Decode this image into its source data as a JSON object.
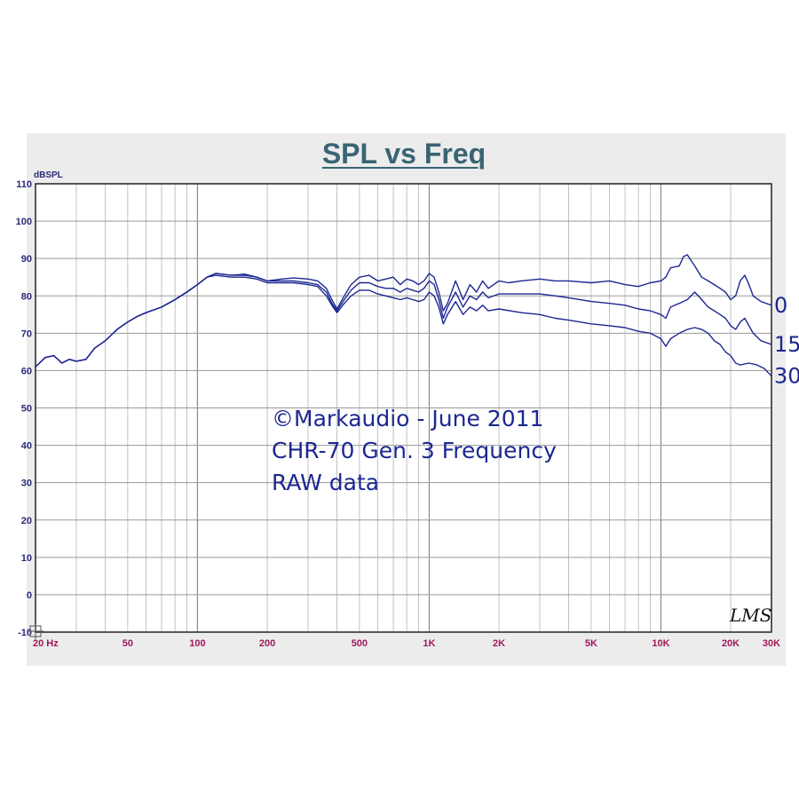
{
  "chart_data": {
    "type": "line",
    "title": "SPL vs Freq",
    "ylabel": "dBSPL",
    "xscale": "log",
    "xlim": [
      20,
      30000
    ],
    "ylim": [
      -10,
      110
    ],
    "grid": true,
    "y_ticks": [
      "110",
      "100",
      "90",
      "80",
      "70",
      "60",
      "50",
      "40",
      "30",
      "20",
      "10",
      "0",
      "-10"
    ],
    "x_ticks": [
      {
        "label": "20 Hz",
        "value": 20
      },
      {
        "label": "50",
        "value": 50
      },
      {
        "label": "100",
        "value": 100
      },
      {
        "label": "200",
        "value": 200
      },
      {
        "label": "500",
        "value": 500
      },
      {
        "label": "1K",
        "value": 1000
      },
      {
        "label": "2K",
        "value": 2000
      },
      {
        "label": "5K",
        "value": 5000
      },
      {
        "label": "10K",
        "value": 10000
      },
      {
        "label": "20K",
        "value": 20000
      },
      {
        "label": "30K",
        "value": 30000
      }
    ],
    "annotations": [
      "©Markaudio - June 2011",
      "CHR-70 Gen. 3 Frequency",
      "RAW data"
    ],
    "signature": "LMS",
    "series": [
      {
        "name": "0",
        "color": "#1c2791",
        "points": [
          [
            20,
            61
          ],
          [
            22,
            63.5
          ],
          [
            24,
            64
          ],
          [
            26,
            62
          ],
          [
            28,
            63
          ],
          [
            30,
            62.5
          ],
          [
            33,
            63
          ],
          [
            36,
            66
          ],
          [
            40,
            68
          ],
          [
            45,
            71
          ],
          [
            50,
            73
          ],
          [
            55,
            74.5
          ],
          [
            60,
            75.5
          ],
          [
            70,
            77
          ],
          [
            80,
            79
          ],
          [
            90,
            81
          ],
          [
            100,
            83
          ],
          [
            110,
            85
          ],
          [
            120,
            86
          ],
          [
            140,
            85.5
          ],
          [
            160,
            85.8
          ],
          [
            180,
            85
          ],
          [
            200,
            84
          ],
          [
            230,
            84.5
          ],
          [
            260,
            84.8
          ],
          [
            300,
            84.5
          ],
          [
            330,
            84
          ],
          [
            360,
            82
          ],
          [
            380,
            79
          ],
          [
            400,
            76.5
          ],
          [
            430,
            80
          ],
          [
            460,
            83
          ],
          [
            500,
            85
          ],
          [
            550,
            85.5
          ],
          [
            600,
            84
          ],
          [
            650,
            84.5
          ],
          [
            700,
            85
          ],
          [
            750,
            83
          ],
          [
            800,
            84.5
          ],
          [
            850,
            84
          ],
          [
            900,
            83
          ],
          [
            950,
            84
          ],
          [
            1000,
            86
          ],
          [
            1050,
            85
          ],
          [
            1100,
            81
          ],
          [
            1150,
            76
          ],
          [
            1200,
            78
          ],
          [
            1300,
            84
          ],
          [
            1400,
            79
          ],
          [
            1500,
            83
          ],
          [
            1600,
            81
          ],
          [
            1700,
            84
          ],
          [
            1800,
            82
          ],
          [
            2000,
            84
          ],
          [
            2200,
            83.5
          ],
          [
            2500,
            84
          ],
          [
            3000,
            84.5
          ],
          [
            3500,
            84
          ],
          [
            4000,
            84
          ],
          [
            5000,
            83.5
          ],
          [
            6000,
            84
          ],
          [
            7000,
            83
          ],
          [
            8000,
            82.5
          ],
          [
            9000,
            83.5
          ],
          [
            10000,
            84
          ],
          [
            10500,
            85
          ],
          [
            11000,
            87.5
          ],
          [
            12000,
            88
          ],
          [
            12500,
            90.5
          ],
          [
            13000,
            91
          ],
          [
            14000,
            88
          ],
          [
            15000,
            85
          ],
          [
            16000,
            84
          ],
          [
            17000,
            83
          ],
          [
            18000,
            82
          ],
          [
            19000,
            81
          ],
          [
            20000,
            79
          ],
          [
            21000,
            80
          ],
          [
            22000,
            84
          ],
          [
            23000,
            85.5
          ],
          [
            24000,
            83
          ],
          [
            25000,
            80
          ],
          [
            27000,
            78.5
          ],
          [
            30000,
            77.5
          ]
        ]
      },
      {
        "name": "15",
        "color": "#1c2791",
        "points": [
          [
            20,
            61
          ],
          [
            22,
            63.5
          ],
          [
            24,
            64
          ],
          [
            26,
            62
          ],
          [
            28,
            63
          ],
          [
            30,
            62.5
          ],
          [
            33,
            63
          ],
          [
            36,
            66
          ],
          [
            40,
            68
          ],
          [
            45,
            71
          ],
          [
            50,
            73
          ],
          [
            55,
            74.5
          ],
          [
            60,
            75.5
          ],
          [
            70,
            77
          ],
          [
            80,
            79
          ],
          [
            90,
            81
          ],
          [
            100,
            83
          ],
          [
            110,
            85
          ],
          [
            120,
            86
          ],
          [
            140,
            85.5
          ],
          [
            160,
            85.5
          ],
          [
            180,
            85
          ],
          [
            200,
            84
          ],
          [
            230,
            84
          ],
          [
            260,
            84
          ],
          [
            300,
            83.5
          ],
          [
            330,
            83
          ],
          [
            360,
            81
          ],
          [
            380,
            78
          ],
          [
            400,
            76
          ],
          [
            430,
            79
          ],
          [
            460,
            81.5
          ],
          [
            500,
            83.5
          ],
          [
            550,
            83.5
          ],
          [
            600,
            82.5
          ],
          [
            650,
            82
          ],
          [
            700,
            82
          ],
          [
            750,
            81
          ],
          [
            800,
            82
          ],
          [
            850,
            81.5
          ],
          [
            900,
            81
          ],
          [
            950,
            82
          ],
          [
            1000,
            84
          ],
          [
            1050,
            83
          ],
          [
            1100,
            79
          ],
          [
            1150,
            74
          ],
          [
            1200,
            77
          ],
          [
            1300,
            81
          ],
          [
            1400,
            77
          ],
          [
            1500,
            80
          ],
          [
            1600,
            79
          ],
          [
            1700,
            81
          ],
          [
            1800,
            79.5
          ],
          [
            2000,
            80.5
          ],
          [
            2500,
            80.5
          ],
          [
            3000,
            80.5
          ],
          [
            3500,
            80
          ],
          [
            4000,
            79.5
          ],
          [
            5000,
            78.5
          ],
          [
            6000,
            78
          ],
          [
            7000,
            77.5
          ],
          [
            8000,
            76.5
          ],
          [
            9000,
            76
          ],
          [
            10000,
            75
          ],
          [
            10500,
            74
          ],
          [
            11000,
            77
          ],
          [
            12000,
            78
          ],
          [
            13000,
            79
          ],
          [
            14000,
            81
          ],
          [
            15000,
            79
          ],
          [
            16000,
            77
          ],
          [
            17000,
            76
          ],
          [
            18000,
            75
          ],
          [
            19000,
            74
          ],
          [
            20000,
            72
          ],
          [
            21000,
            71
          ],
          [
            22000,
            73
          ],
          [
            23000,
            74
          ],
          [
            24000,
            72
          ],
          [
            25000,
            70
          ],
          [
            27000,
            68
          ],
          [
            30000,
            67
          ]
        ]
      },
      {
        "name": "30",
        "color": "#1c2791",
        "points": [
          [
            20,
            61
          ],
          [
            22,
            63.5
          ],
          [
            24,
            64
          ],
          [
            26,
            62
          ],
          [
            28,
            63
          ],
          [
            30,
            62.5
          ],
          [
            33,
            63
          ],
          [
            36,
            66
          ],
          [
            40,
            68
          ],
          [
            45,
            71
          ],
          [
            50,
            73
          ],
          [
            55,
            74.5
          ],
          [
            60,
            75.5
          ],
          [
            70,
            77
          ],
          [
            80,
            79
          ],
          [
            90,
            81
          ],
          [
            100,
            83
          ],
          [
            110,
            85
          ],
          [
            120,
            85.5
          ],
          [
            140,
            85
          ],
          [
            160,
            85
          ],
          [
            180,
            84.5
          ],
          [
            200,
            83.5
          ],
          [
            230,
            83.5
          ],
          [
            260,
            83.5
          ],
          [
            300,
            83
          ],
          [
            330,
            82.5
          ],
          [
            360,
            80
          ],
          [
            380,
            77.5
          ],
          [
            400,
            75.5
          ],
          [
            430,
            78
          ],
          [
            460,
            80
          ],
          [
            500,
            81.5
          ],
          [
            550,
            81.5
          ],
          [
            600,
            80.5
          ],
          [
            650,
            80
          ],
          [
            700,
            79.5
          ],
          [
            750,
            79
          ],
          [
            800,
            79.5
          ],
          [
            850,
            79
          ],
          [
            900,
            78.5
          ],
          [
            950,
            79
          ],
          [
            1000,
            81
          ],
          [
            1050,
            80
          ],
          [
            1100,
            77
          ],
          [
            1150,
            72.5
          ],
          [
            1200,
            75
          ],
          [
            1300,
            78.5
          ],
          [
            1400,
            75
          ],
          [
            1500,
            77
          ],
          [
            1600,
            76
          ],
          [
            1700,
            77.5
          ],
          [
            1800,
            76
          ],
          [
            2000,
            76.5
          ],
          [
            2500,
            75.5
          ],
          [
            3000,
            75
          ],
          [
            3500,
            74
          ],
          [
            4000,
            73.5
          ],
          [
            5000,
            72.5
          ],
          [
            6000,
            72
          ],
          [
            7000,
            71.5
          ],
          [
            8000,
            70.5
          ],
          [
            9000,
            70
          ],
          [
            10000,
            68.5
          ],
          [
            10500,
            66.5
          ],
          [
            11000,
            68.5
          ],
          [
            12000,
            70
          ],
          [
            13000,
            71
          ],
          [
            14000,
            71.5
          ],
          [
            15000,
            71
          ],
          [
            16000,
            70
          ],
          [
            17000,
            68
          ],
          [
            18000,
            67
          ],
          [
            19000,
            65
          ],
          [
            20000,
            64
          ],
          [
            21000,
            62
          ],
          [
            22000,
            61.5
          ],
          [
            24000,
            62
          ],
          [
            26000,
            61.5
          ],
          [
            28000,
            60.5
          ],
          [
            30000,
            58.5
          ]
        ]
      }
    ]
  }
}
